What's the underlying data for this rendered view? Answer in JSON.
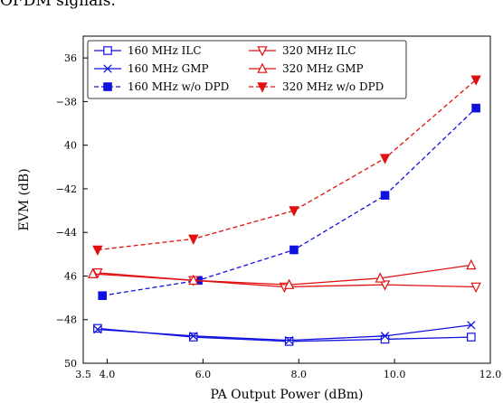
{
  "caption_fragment": "OFDM signals.",
  "chart_data": {
    "type": "line",
    "xlabel": "PA Output Power (dBm)",
    "ylabel": "EVM (dB)",
    "xlim": [
      3.5,
      12.0
    ],
    "ylim": [
      -50,
      -35
    ],
    "xticks": [
      3.5,
      4.0,
      6.0,
      8.0,
      10.0,
      12.0
    ],
    "xtick_labels": [
      "3.5",
      "4.0",
      "6.0",
      "8.0",
      "10.0",
      "12.0"
    ],
    "yticks": [
      -50,
      -48,
      -46,
      -44,
      -42,
      -40,
      -38,
      -36
    ],
    "ytick_labels": [
      "50",
      "−48",
      "46",
      "−44",
      "−42",
      "40",
      "−38",
      "36"
    ],
    "grid": false,
    "legend": "top-left",
    "series": [
      {
        "name": "160 MHz ILC",
        "color": "#1010e0",
        "dash": "solid",
        "marker": "square-open",
        "x": [
          3.8,
          5.8,
          7.8,
          9.8,
          11.6
        ],
        "y": [
          -48.4,
          -48.8,
          -49.0,
          -48.9,
          -48.8
        ]
      },
      {
        "name": "160 MHz GMP",
        "color": "#1010e0",
        "dash": "solid",
        "marker": "x",
        "x": [
          3.8,
          5.8,
          7.8,
          9.8,
          11.6
        ],
        "y": [
          -48.45,
          -48.75,
          -48.95,
          -48.75,
          -48.25
        ]
      },
      {
        "name": "160 MHz w/o DPD",
        "color": "#1010e0",
        "dash": "dashed",
        "marker": "square-filled",
        "x": [
          3.9,
          5.9,
          7.9,
          9.8,
          11.7
        ],
        "y": [
          -46.9,
          -46.2,
          -44.8,
          -42.3,
          -38.3
        ]
      },
      {
        "name": "320 MHz ILC",
        "color": "#e01010",
        "dash": "solid",
        "marker": "triangle-down-open",
        "x": [
          3.8,
          5.8,
          7.7,
          9.8,
          11.7
        ],
        "y": [
          -45.85,
          -46.2,
          -46.5,
          -46.4,
          -46.5
        ]
      },
      {
        "name": "320 MHz GMP",
        "color": "#e01010",
        "dash": "solid",
        "marker": "triangle-up-open",
        "x": [
          3.7,
          5.8,
          7.8,
          9.7,
          11.6
        ],
        "y": [
          -45.9,
          -46.2,
          -46.4,
          -46.1,
          -45.5
        ]
      },
      {
        "name": "320 MHz w/o DPD",
        "color": "#e01010",
        "dash": "dashed",
        "marker": "triangle-down-filled",
        "x": [
          3.8,
          5.8,
          7.9,
          9.8,
          11.7
        ],
        "y": [
          -44.8,
          -44.3,
          -43.0,
          -40.6,
          -37.0
        ]
      }
    ]
  }
}
